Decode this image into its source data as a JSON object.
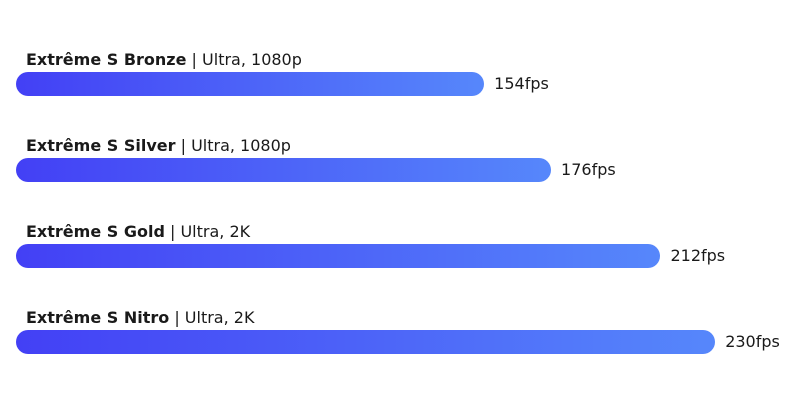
{
  "chart_data": {
    "type": "bar",
    "orientation": "horizontal",
    "title": "",
    "xlabel": "",
    "ylabel": "",
    "unit": "fps",
    "xlim": [
      0,
      240
    ],
    "categories": [
      "Extrême S Bronze",
      "Extrême S Silver",
      "Extrême S Gold",
      "Extrême S Nitro"
    ],
    "settings": [
      "Ultra, 1080p",
      "Ultra, 1080p",
      "Ultra, 2K",
      "Ultra, 2K"
    ],
    "values": [
      154,
      176,
      212,
      230
    ],
    "value_labels": [
      "154fps",
      "176fps",
      "212fps",
      "230fps"
    ],
    "bar_gradient": [
      "#4340f5",
      "#5687fb"
    ]
  }
}
